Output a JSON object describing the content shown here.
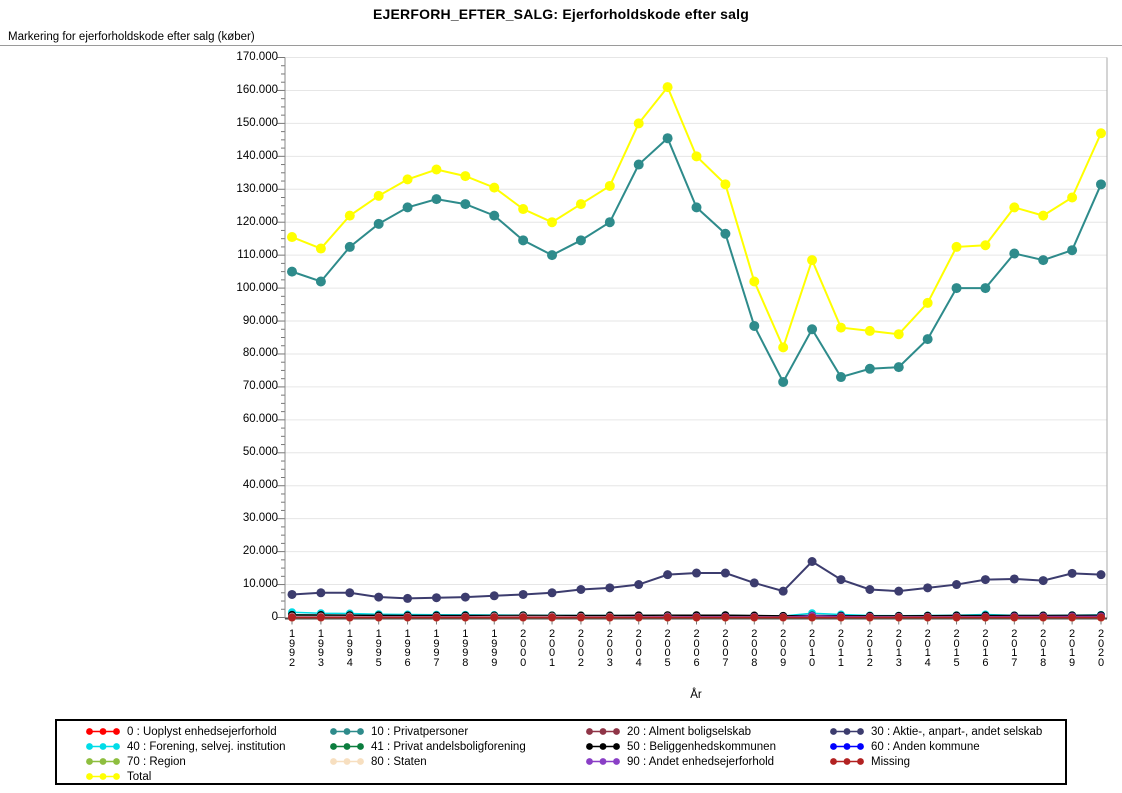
{
  "page": {
    "title": "EJERFORH_EFTER_SALG: Ejerforholdskode efter salg"
  },
  "axes": {
    "y_title": "Markering for ejerforholdskode efter salg (køber)",
    "x_title": "År",
    "y_tick_labels": [
      "0",
      "10.000",
      "20.000",
      "30.000",
      "40.000",
      "50.000",
      "60.000",
      "70.000",
      "80.000",
      "90.000",
      "100.000",
      "110.000",
      "120.000",
      "130.000",
      "140.000",
      "150.000",
      "160.000",
      "170.000"
    ]
  },
  "chart_data": {
    "type": "line",
    "title": "EJERFORH_EFTER_SALG: Ejerforholdskode efter salg",
    "xlabel": "År",
    "ylabel": "Markering for ejerforholdskode efter salg (køber)",
    "ylim": [
      0,
      170000
    ],
    "y_major_step": 10000,
    "grid": true,
    "legend_position": "bottom",
    "x": [
      1992,
      1993,
      1994,
      1995,
      1996,
      1997,
      1998,
      1999,
      2000,
      2001,
      2002,
      2003,
      2004,
      2005,
      2006,
      2007,
      2008,
      2009,
      2010,
      2011,
      2012,
      2013,
      2014,
      2015,
      2016,
      2017,
      2018,
      2019,
      2020
    ],
    "series": [
      {
        "name": "0 : Uoplyst enhedsejerforhold",
        "color": "#ff0000",
        "r": 4,
        "lw": 1.5,
        "values": [
          0,
          0,
          0,
          0,
          0,
          0,
          0,
          0,
          0,
          0,
          0,
          0,
          0,
          0,
          0,
          0,
          0,
          0,
          0,
          0,
          0,
          0,
          0,
          0,
          0,
          0,
          0,
          0,
          0
        ]
      },
      {
        "name": "10 : Privatpersoner",
        "color": "#2e8b8b",
        "r": 5,
        "lw": 2,
        "values": [
          105000,
          102000,
          112500,
          119500,
          124500,
          127000,
          125500,
          122000,
          114500,
          110000,
          114500,
          120000,
          137500,
          145500,
          124500,
          116500,
          88500,
          71500,
          87500,
          73000,
          75500,
          76000,
          84500,
          100000,
          100000,
          110500,
          108500,
          111500,
          131500
        ]
      },
      {
        "name": "20 : Alment boligselskab",
        "color": "#8f3547",
        "r": 4,
        "lw": 1.5,
        "values": [
          250,
          240,
          230,
          220,
          210,
          200,
          200,
          200,
          210,
          210,
          210,
          210,
          220,
          230,
          230,
          230,
          210,
          190,
          230,
          210,
          200,
          200,
          200,
          210,
          220,
          220,
          220,
          230,
          240
        ]
      },
      {
        "name": "30 : Aktie-, anpart-, andet selskab",
        "color": "#3c3c6e",
        "r": 4.5,
        "lw": 2,
        "values": [
          7000,
          7500,
          7500,
          6200,
          5800,
          6000,
          6200,
          6600,
          7000,
          7500,
          8500,
          9000,
          10000,
          13000,
          13500,
          13500,
          10500,
          8000,
          17000,
          11500,
          8500,
          8000,
          9000,
          10000,
          11500,
          11700,
          11200,
          13400,
          13000
        ]
      },
      {
        "name": "40 : Forening, selvej. institution",
        "color": "#00dce8",
        "r": 4,
        "lw": 1.5,
        "values": [
          1600,
          1300,
          1200,
          1000,
          900,
          850,
          800,
          750,
          700,
          650,
          600,
          600,
          600,
          600,
          650,
          700,
          500,
          450,
          1300,
          900,
          600,
          550,
          600,
          700,
          900,
          650,
          600,
          700,
          800
        ]
      },
      {
        "name": "41 : Privat andelsboligforening",
        "color": "#0b7d3e",
        "r": 4,
        "lw": 1.5,
        "values": [
          400,
          400,
          400,
          380,
          360,
          350,
          350,
          340,
          330,
          320,
          310,
          300,
          300,
          310,
          320,
          320,
          300,
          280,
          320,
          300,
          280,
          280,
          290,
          300,
          310,
          320,
          320,
          330,
          340
        ]
      },
      {
        "name": "50 : Beliggenhedskommunen",
        "color": "#000000",
        "r": 4,
        "lw": 1.5,
        "values": [
          800,
          750,
          700,
          650,
          600,
          600,
          600,
          600,
          650,
          600,
          600,
          600,
          650,
          700,
          700,
          700,
          600,
          500,
          600,
          550,
          500,
          500,
          550,
          600,
          600,
          600,
          600,
          650,
          700
        ]
      },
      {
        "name": "60 : Anden kommune",
        "color": "#0000ff",
        "r": 4,
        "lw": 1.5,
        "values": [
          120,
          110,
          100,
          100,
          100,
          100,
          100,
          100,
          100,
          100,
          100,
          100,
          110,
          120,
          120,
          120,
          100,
          90,
          120,
          100,
          100,
          100,
          100,
          110,
          110,
          110,
          110,
          120,
          120
        ]
      },
      {
        "name": "70 : Region",
        "color": "#8ebe3f",
        "r": 4,
        "lw": 1.5,
        "values": [
          30,
          30,
          30,
          30,
          30,
          30,
          30,
          30,
          30,
          30,
          30,
          30,
          30,
          30,
          30,
          30,
          30,
          30,
          30,
          30,
          30,
          30,
          30,
          30,
          30,
          30,
          30,
          30,
          30
        ]
      },
      {
        "name": "80 : Staten",
        "color": "#f7dfc0",
        "r": 4,
        "lw": 1.5,
        "values": [
          250,
          250,
          250,
          200,
          200,
          200,
          200,
          250,
          250,
          250,
          200,
          200,
          200,
          250,
          200,
          200,
          150,
          100,
          350,
          200,
          150,
          150,
          150,
          200,
          200,
          200,
          200,
          200,
          250
        ]
      },
      {
        "name": "90 : Andet enhedsejerforhold",
        "color": "#8a3fc6",
        "r": 4,
        "lw": 1.5,
        "values": [
          100,
          100,
          100,
          100,
          100,
          100,
          100,
          100,
          100,
          100,
          100,
          100,
          150,
          200,
          200,
          200,
          150,
          100,
          500,
          300,
          200,
          150,
          150,
          200,
          200,
          250,
          250,
          300,
          300
        ]
      },
      {
        "name": "Missing",
        "color": "#b22222",
        "r": 4,
        "lw": 1.5,
        "values": [
          50,
          50,
          50,
          50,
          50,
          50,
          50,
          50,
          50,
          50,
          50,
          50,
          50,
          50,
          50,
          50,
          50,
          50,
          50,
          50,
          50,
          50,
          50,
          50,
          50,
          50,
          50,
          50,
          50
        ]
      },
      {
        "name": "Total",
        "color": "#ffff00",
        "r": 5,
        "lw": 2,
        "values": [
          115500,
          112000,
          122000,
          128000,
          133000,
          136000,
          134000,
          130500,
          124000,
          120000,
          125500,
          131000,
          150000,
          161000,
          140000,
          131500,
          102000,
          82000,
          108500,
          88000,
          87000,
          86000,
          95500,
          112500,
          113000,
          124500,
          122000,
          127500,
          147000
        ]
      }
    ]
  },
  "colors": {
    "gridline": "#e6e6e6",
    "axis_left": "#888888",
    "axis_right": "#aaaaaa",
    "axis_bottom": "#4a4a4a",
    "tick": "#777777"
  }
}
